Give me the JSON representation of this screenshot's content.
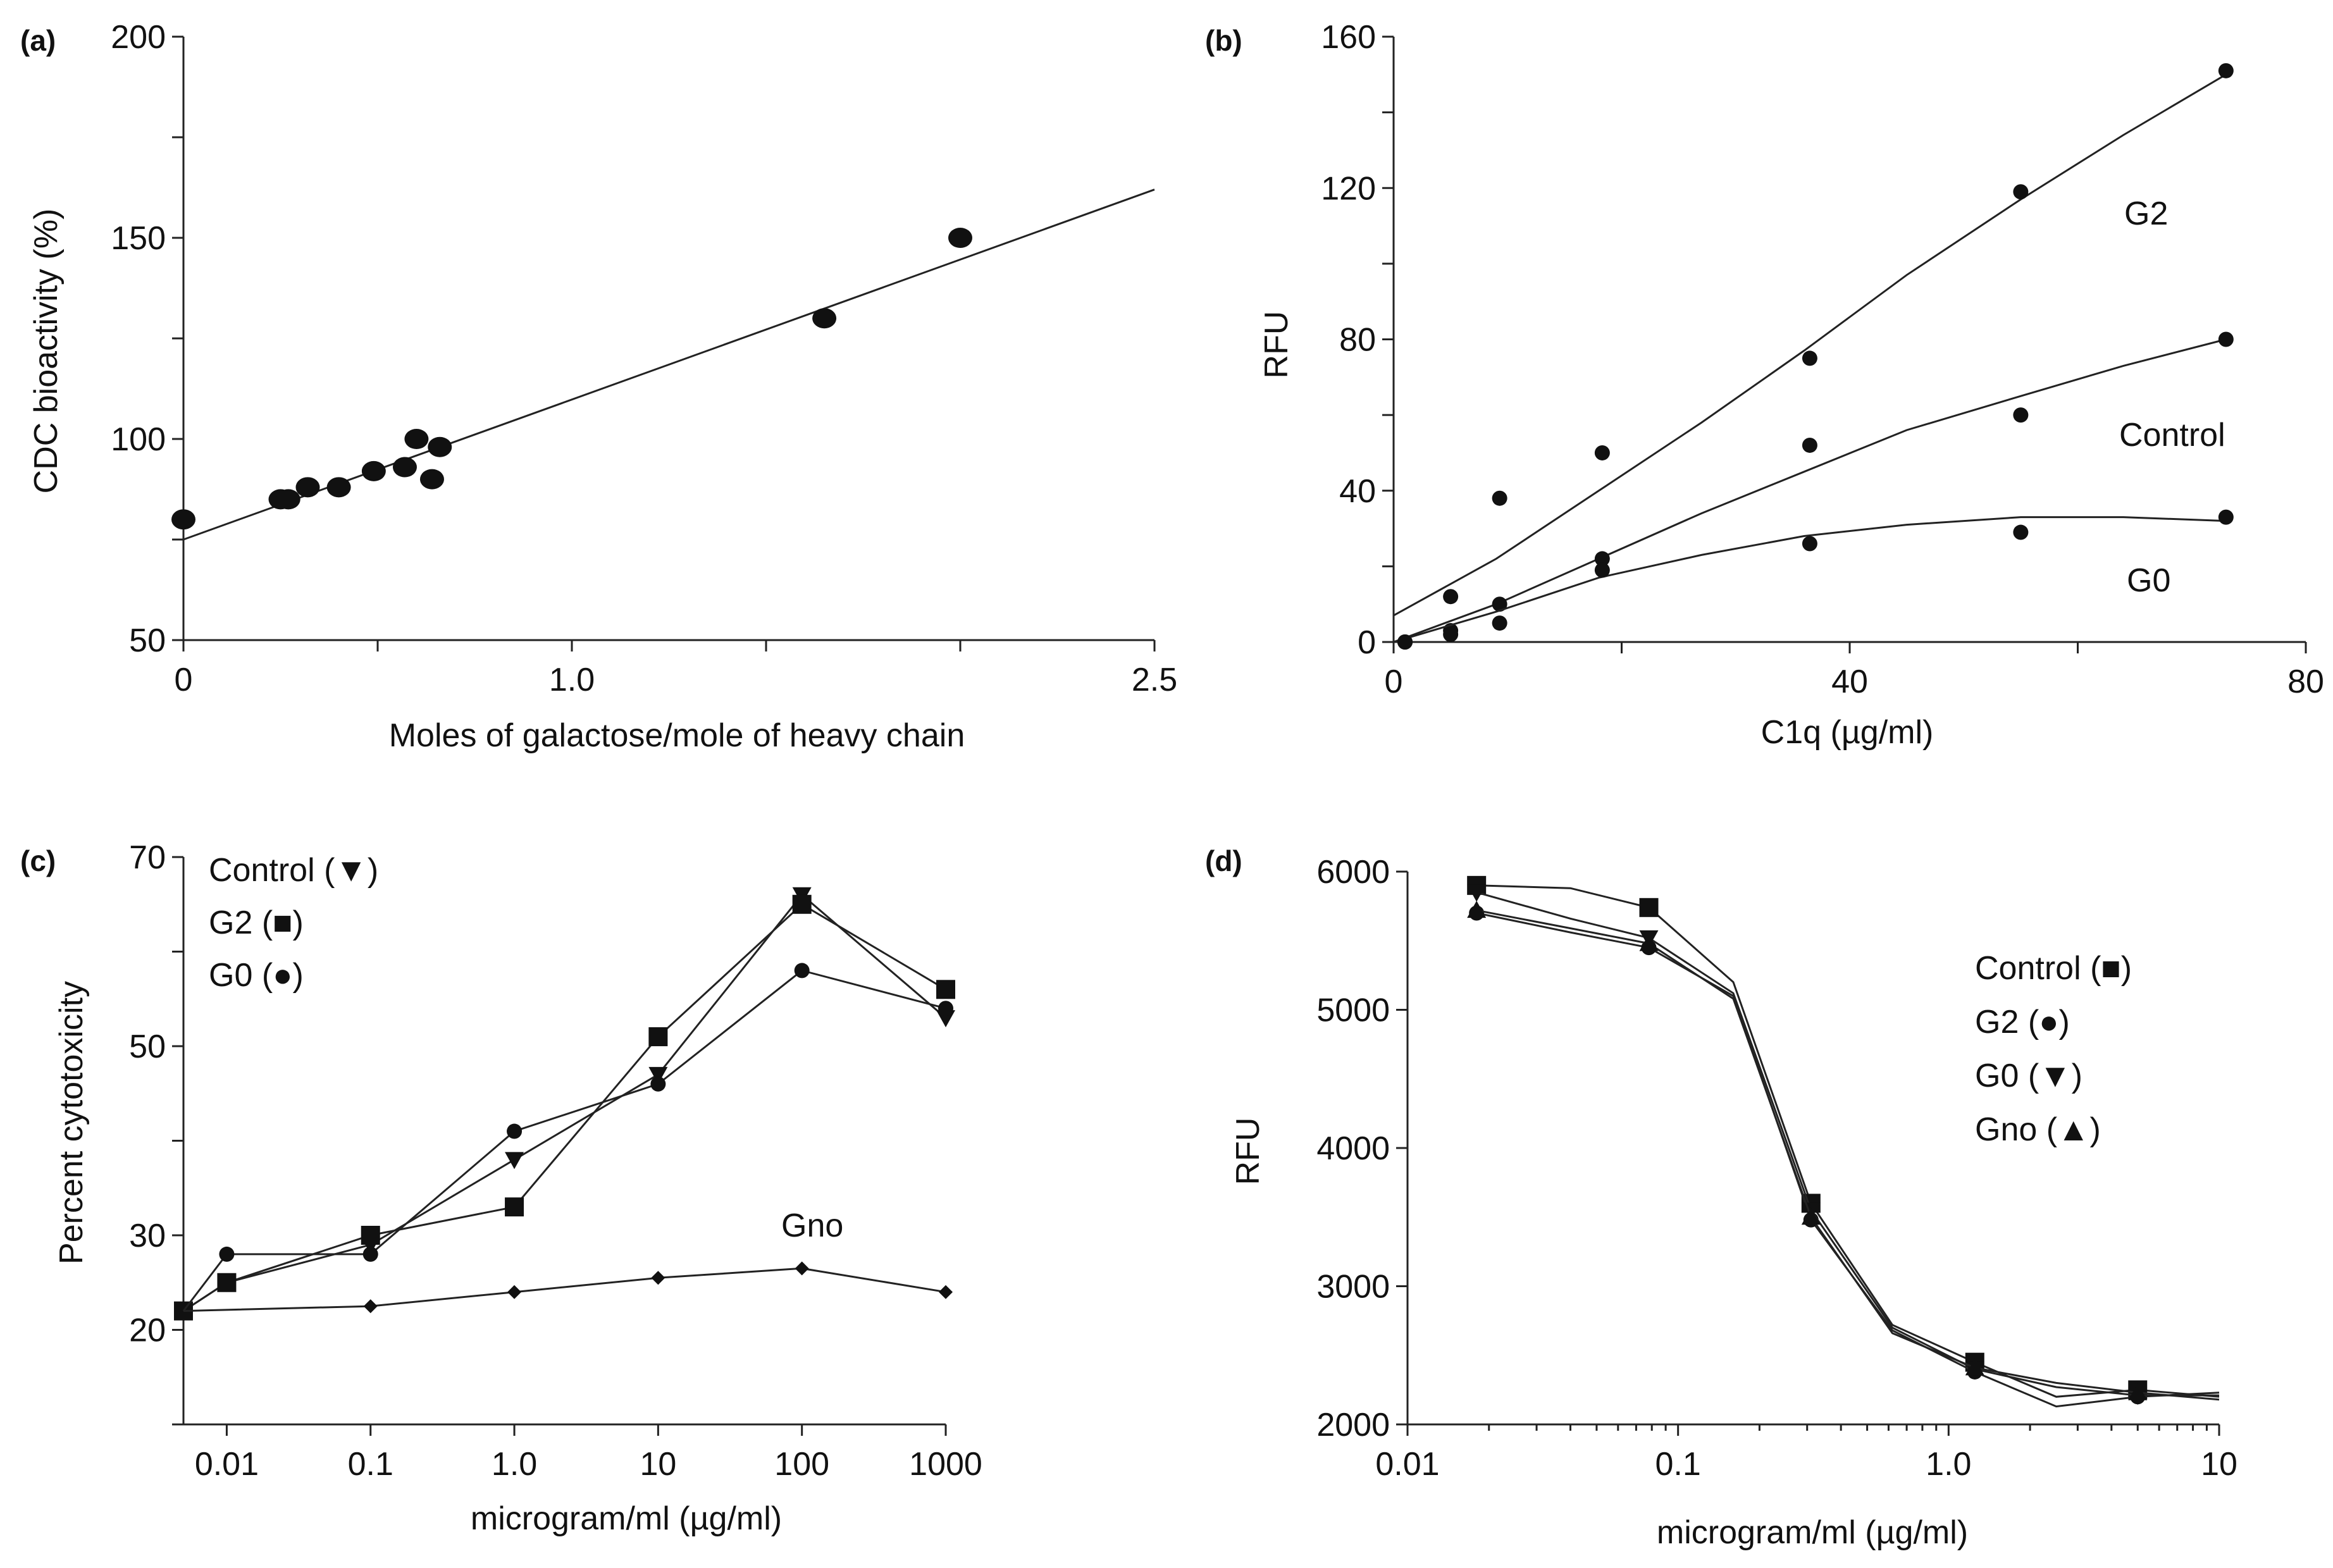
{
  "chart_data": [
    {
      "panel": "(a)",
      "type": "scatter",
      "xlabel": "Moles of galactose/mole of heavy chain",
      "ylabel": "CDC bioactivity (%)",
      "xlim": [
        0,
        2.5
      ],
      "ylim": [
        50,
        200
      ],
      "x_ticks": [
        0,
        1.0,
        2.5
      ],
      "x_tick_labels": [
        "0",
        "1.0",
        "2.5"
      ],
      "x_minor_ticks": [
        0.5,
        1.5,
        2.0
      ],
      "y_ticks": [
        50,
        100,
        150,
        200
      ],
      "y_tick_labels": [
        "50",
        "100",
        "150",
        "200"
      ],
      "series": [
        {
          "x": [
            0.0,
            0.25,
            0.27,
            0.32,
            0.4,
            0.49,
            0.57,
            0.6,
            0.64,
            0.66,
            1.65,
            2.0
          ],
          "y": [
            80,
            85,
            85,
            88,
            88,
            92,
            93,
            100,
            90,
            98,
            130,
            150
          ]
        }
      ],
      "fit_line": {
        "x": [
          0,
          2.5
        ],
        "y": [
          75,
          162
        ]
      },
      "grid": false
    },
    {
      "panel": "(b)",
      "type": "scatter",
      "xlabel": "C1q (µg/ml)",
      "ylabel": "RFU",
      "xlim": [
        0,
        80
      ],
      "ylim": [
        0,
        160
      ],
      "x_ticks": [
        0,
        40,
        80
      ],
      "x_tick_labels": [
        "0",
        "40",
        "80"
      ],
      "x_minor_ticks": [
        20,
        60
      ],
      "y_ticks": [
        0,
        40,
        80,
        120,
        160
      ],
      "y_tick_labels": [
        "0",
        "40",
        "80",
        "120",
        "160"
      ],
      "series": [
        {
          "name": "G2",
          "x": [
            1,
            5,
            9.3,
            18.3,
            36.5,
            55,
            73
          ],
          "y": [
            0,
            12,
            38,
            50,
            75,
            119,
            151
          ],
          "fit_x": [
            0,
            9,
            18,
            27,
            36,
            45,
            55,
            64,
            73
          ],
          "fit_y": [
            7,
            22,
            40,
            58,
            77,
            97,
            117,
            134,
            150
          ]
        },
        {
          "name": "Control",
          "x": [
            1,
            5,
            9.3,
            18.3,
            36.5,
            55,
            73
          ],
          "y": [
            0,
            3,
            10,
            22,
            52,
            60,
            80
          ],
          "fit_x": [
            0,
            9,
            18,
            27,
            36,
            45,
            55,
            64,
            73
          ],
          "fit_y": [
            0,
            10,
            22,
            34,
            45,
            56,
            65,
            73,
            80
          ]
        },
        {
          "name": "G0",
          "x": [
            1,
            5,
            9.3,
            18.3,
            36.5,
            55,
            73
          ],
          "y": [
            0,
            2,
            5,
            19,
            26,
            29,
            33
          ],
          "fit_x": [
            0,
            9,
            18,
            27,
            36,
            45,
            55,
            64,
            73
          ],
          "fit_y": [
            0,
            8,
            17,
            23,
            28,
            31,
            33,
            33,
            32
          ]
        }
      ],
      "annotations": [
        "G2",
        "Control",
        "G0"
      ],
      "grid": false
    },
    {
      "panel": "(c)",
      "type": "line",
      "xlabel": "microgram/ml (µg/ml)",
      "ylabel": "Percent cytotoxicity",
      "x_scale": "log",
      "xlim": [
        0.005,
        1000
      ],
      "ylim": [
        10,
        70
      ],
      "x_ticks": [
        0.01,
        0.1,
        1,
        10,
        100,
        1000
      ],
      "x_tick_labels": [
        "0.01",
        "0.1",
        "1.0",
        "10",
        "100",
        "1000"
      ],
      "y_ticks": [
        20,
        30,
        50,
        70
      ],
      "y_tick_labels": [
        "20",
        "30",
        "50",
        "70"
      ],
      "series": [
        {
          "name": "Control",
          "marker": "triangle-down",
          "x": [
            0.005,
            0.01,
            0.1,
            1,
            10,
            100,
            1000
          ],
          "y": [
            22,
            25,
            29,
            38,
            47,
            66,
            53
          ]
        },
        {
          "name": "G2",
          "marker": "square",
          "x": [
            0.005,
            0.01,
            0.1,
            1,
            10,
            100,
            1000
          ],
          "y": [
            22,
            25,
            30,
            33,
            51,
            65,
            56
          ]
        },
        {
          "name": "G0",
          "marker": "circle",
          "x": [
            0.005,
            0.01,
            0.1,
            1,
            10,
            100,
            1000
          ],
          "y": [
            22,
            28,
            28,
            41,
            46,
            58,
            54
          ]
        },
        {
          "name": "Gno",
          "marker": "diamond",
          "x": [
            0.005,
            0.1,
            1,
            10,
            100,
            1000
          ],
          "y": [
            22,
            22.5,
            24,
            25.5,
            26.5,
            24
          ]
        }
      ],
      "legend": [
        "Control (▼)",
        "G2 (■)",
        "G0 (●)"
      ],
      "legend_position": "top-left",
      "annotations": [
        "Gno"
      ],
      "grid": false
    },
    {
      "panel": "(d)",
      "type": "line",
      "xlabel": "microgram/ml (µg/ml)",
      "ylabel": "RFU",
      "x_scale": "log",
      "xlim": [
        0.01,
        10
      ],
      "ylim": [
        2000,
        6000
      ],
      "x_ticks": [
        0.01,
        0.1,
        1.0,
        10
      ],
      "x_tick_labels": [
        "0.01",
        "0.1",
        "1.0",
        "10"
      ],
      "y_ticks": [
        2000,
        3000,
        4000,
        5000,
        6000
      ],
      "y_tick_labels": [
        "2000",
        "3000",
        "4000",
        "5000",
        "6000"
      ],
      "series": [
        {
          "name": "Control",
          "marker": "square",
          "x": [
            0.018,
            0.04,
            0.078,
            0.16,
            0.31,
            0.62,
            1.25,
            2.5,
            5,
            10
          ],
          "y": [
            5900,
            5880,
            5740,
            5200,
            3600,
            2720,
            2450,
            2200,
            2250,
            2200
          ]
        },
        {
          "name": "G2",
          "marker": "circle",
          "x": [
            0.018,
            0.04,
            0.078,
            0.16,
            0.31,
            0.62,
            1.25,
            2.5,
            5,
            10
          ],
          "y": [
            5700,
            5560,
            5450,
            5100,
            3480,
            2680,
            2380,
            2130,
            2200,
            2230
          ]
        },
        {
          "name": "G0",
          "marker": "triangle-down",
          "x": [
            0.018,
            0.04,
            0.078,
            0.16,
            0.31,
            0.62,
            1.25,
            2.5,
            5,
            10
          ],
          "y": [
            5850,
            5660,
            5520,
            5120,
            3550,
            2700,
            2400,
            2270,
            2210,
            2210
          ]
        },
        {
          "name": "Gno",
          "marker": "triangle-up",
          "x": [
            0.018,
            0.04,
            0.078,
            0.16,
            0.31,
            0.62,
            1.25,
            2.5,
            5,
            10
          ],
          "y": [
            5720,
            5590,
            5480,
            5080,
            3500,
            2660,
            2410,
            2300,
            2230,
            2180
          ]
        }
      ],
      "legend": [
        "Control (■)",
        "G2 (●)",
        "G0 (▼)",
        "Gno (▲)"
      ],
      "legend_position": "right",
      "grid": false
    }
  ]
}
